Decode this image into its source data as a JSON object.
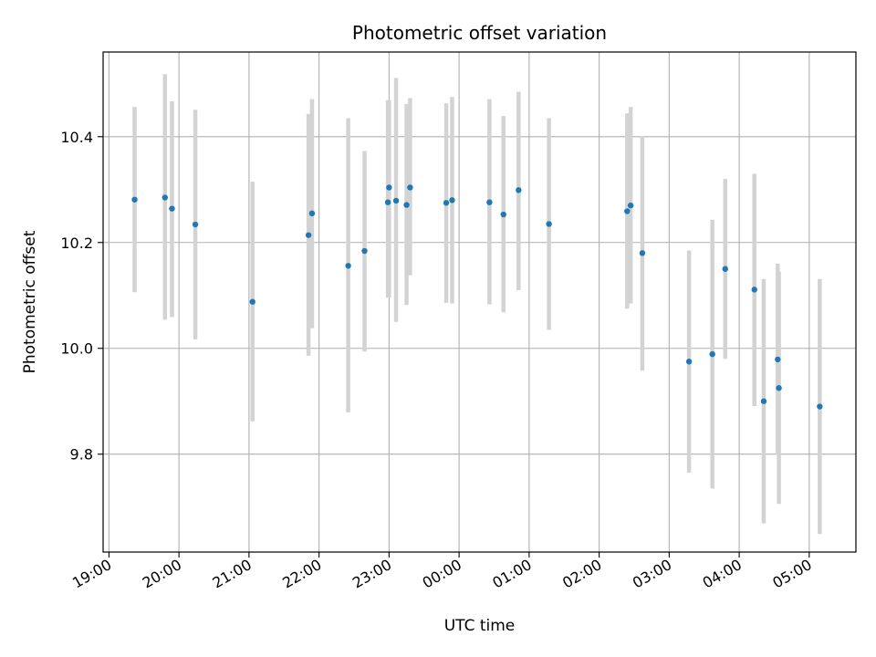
{
  "chart_data": {
    "type": "scatter",
    "title": "Photometric offset variation",
    "xlabel": "UTC time",
    "ylabel": "Photometric offset",
    "x_unit": "hours (UTC clock, continuing past midnight)",
    "xlim": [
      "18:55",
      "05:40"
    ],
    "ylim": [
      9.615,
      10.56
    ],
    "grid": true,
    "x_tick_labels": [
      "19:00",
      "20:00",
      "21:00",
      "22:00",
      "23:00",
      "00:00",
      "01:00",
      "02:00",
      "03:00",
      "04:00",
      "05:00"
    ],
    "y_tick_labels": [
      "9.8",
      "10.0",
      "10.2",
      "10.4"
    ],
    "y_ticks": [
      9.8,
      10.0,
      10.2,
      10.4
    ],
    "colors": {
      "point": "#1f77b4",
      "errorbar": "#d3d3d3",
      "grid": "#b0b0b0"
    },
    "series": [
      {
        "points": [
          {
            "t": "19:22",
            "y": 10.281,
            "lo": 10.106,
            "hi": 10.456
          },
          {
            "t": "19:48",
            "y": 10.285,
            "lo": 10.054,
            "hi": 10.518
          },
          {
            "t": "19:54",
            "y": 10.264,
            "lo": 10.059,
            "hi": 10.467
          },
          {
            "t": "20:14",
            "y": 10.234,
            "lo": 10.017,
            "hi": 10.451
          },
          {
            "t": "21:03",
            "y": 10.088,
            "lo": 9.862,
            "hi": 10.315
          },
          {
            "t": "21:51",
            "y": 10.214,
            "lo": 9.986,
            "hi": 10.443
          },
          {
            "t": "21:54",
            "y": 10.255,
            "lo": 10.038,
            "hi": 10.471
          },
          {
            "t": "22:25",
            "y": 10.156,
            "lo": 9.879,
            "hi": 10.435
          },
          {
            "t": "22:39",
            "y": 10.184,
            "lo": 9.994,
            "hi": 10.373
          },
          {
            "t": "22:59",
            "y": 10.276,
            "lo": 10.096,
            "hi": 10.469
          },
          {
            "t": "23:00",
            "y": 10.304,
            "lo": 10.096,
            "hi": 10.469
          },
          {
            "t": "23:06",
            "y": 10.279,
            "lo": 10.05,
            "hi": 10.511
          },
          {
            "t": "23:15",
            "y": 10.271,
            "lo": 10.082,
            "hi": 10.462
          },
          {
            "t": "23:18",
            "y": 10.304,
            "lo": 10.138,
            "hi": 10.473
          },
          {
            "t": "23:49",
            "y": 10.275,
            "lo": 10.086,
            "hi": 10.463
          },
          {
            "t": "23:54",
            "y": 10.28,
            "lo": 10.085,
            "hi": 10.475
          },
          {
            "t": "00:26",
            "y": 10.276,
            "lo": 10.083,
            "hi": 10.471
          },
          {
            "t": "00:38",
            "y": 10.253,
            "lo": 10.068,
            "hi": 10.439
          },
          {
            "t": "00:51",
            "y": 10.299,
            "lo": 10.11,
            "hi": 10.485
          },
          {
            "t": "01:17",
            "y": 10.235,
            "lo": 10.035,
            "hi": 10.435
          },
          {
            "t": "02:24",
            "y": 10.259,
            "lo": 10.075,
            "hi": 10.444
          },
          {
            "t": "02:27",
            "y": 10.27,
            "lo": 10.085,
            "hi": 10.456
          },
          {
            "t": "02:37",
            "y": 10.18,
            "lo": 9.958,
            "hi": 10.401
          },
          {
            "t": "03:17",
            "y": 9.975,
            "lo": 9.765,
            "hi": 10.185
          },
          {
            "t": "03:37",
            "y": 9.989,
            "lo": 9.735,
            "hi": 10.243
          },
          {
            "t": "03:48",
            "y": 10.15,
            "lo": 9.98,
            "hi": 10.32
          },
          {
            "t": "04:13",
            "y": 10.111,
            "lo": 9.891,
            "hi": 10.33
          },
          {
            "t": "04:21",
            "y": 9.9,
            "lo": 9.669,
            "hi": 10.131
          },
          {
            "t": "04:33",
            "y": 9.979,
            "lo": 9.8,
            "hi": 10.16
          },
          {
            "t": "04:34",
            "y": 9.925,
            "lo": 9.706,
            "hi": 10.145
          },
          {
            "t": "05:09",
            "y": 9.89,
            "lo": 9.649,
            "hi": 10.131
          }
        ]
      }
    ]
  }
}
